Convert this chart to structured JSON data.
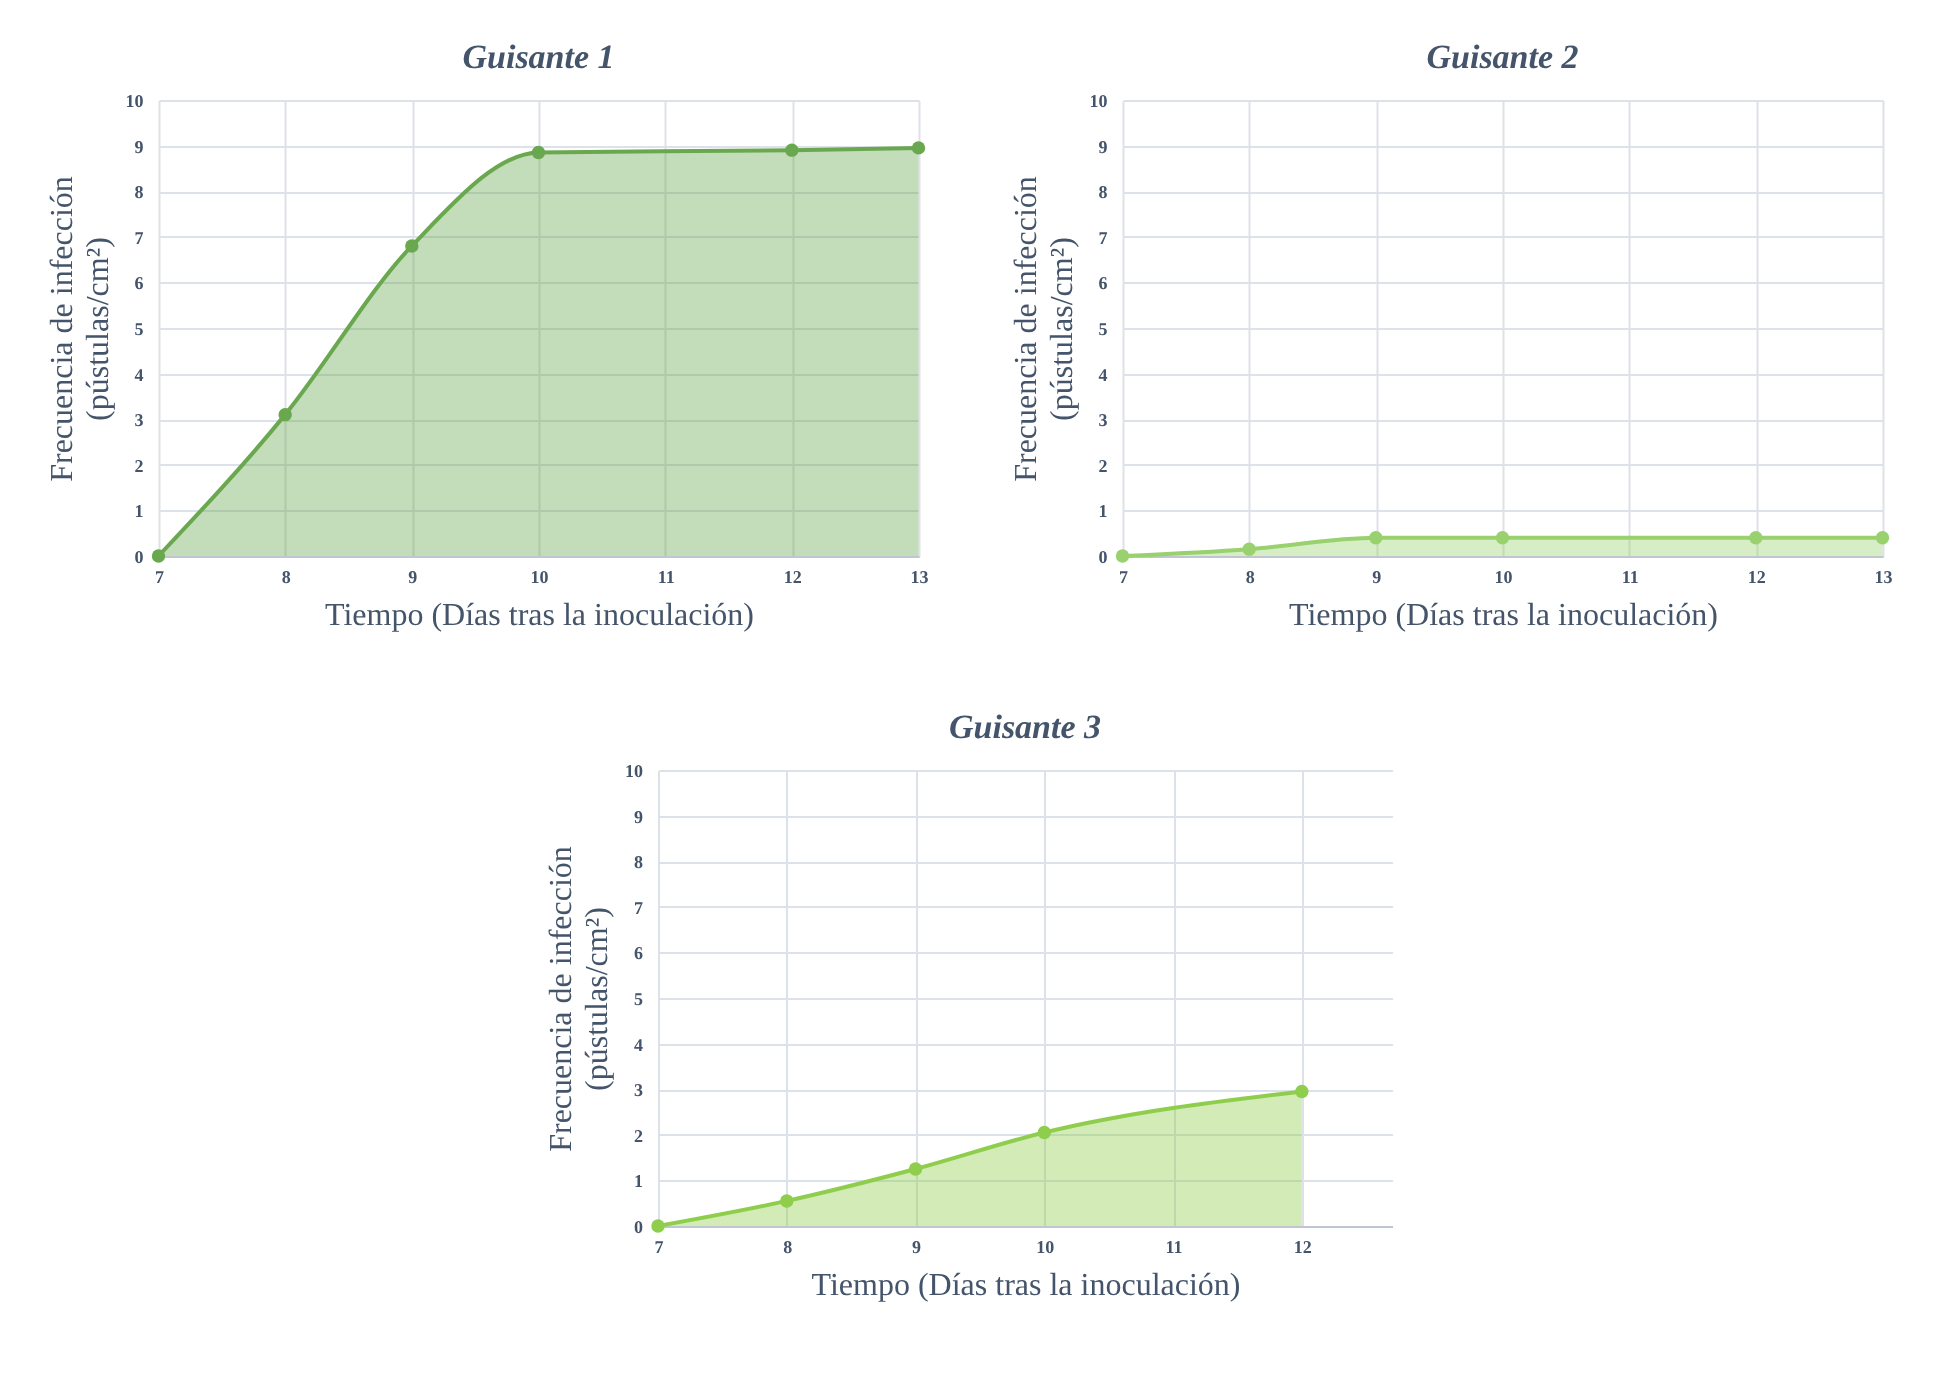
{
  "chart_data": [
    {
      "type": "area",
      "title": "Guisante 1",
      "xlabel": "Tiempo (Días tras la inoculación)",
      "ylabel": "Frecuencia  de infección\n(pústulas/cm²)",
      "x": [
        7,
        8,
        9,
        10,
        12,
        13
      ],
      "series": [
        {
          "color": "#6aa84f",
          "values": [
            0,
            3.1,
            6.8,
            8.85,
            8.9,
            8.95
          ]
        }
      ],
      "xlim": [
        7,
        13
      ],
      "xticks": [
        7,
        8,
        9,
        10,
        11,
        12,
        13
      ],
      "ylim": [
        0,
        10
      ],
      "yticks": [
        0,
        1,
        2,
        3,
        4,
        5,
        6,
        7,
        8,
        9,
        10
      ],
      "grid": true,
      "marker": "circle"
    },
    {
      "type": "area",
      "title": "Guisante 2",
      "xlabel": "Tiempo (Días tras la inoculación)",
      "ylabel": "Frecuencia  de infección\n(pústulas/cm²)",
      "x": [
        7,
        8,
        9,
        10,
        12,
        13
      ],
      "series": [
        {
          "color": "#98d16e",
          "values": [
            0,
            0.15,
            0.4,
            0.4,
            0.4,
            0.4
          ]
        }
      ],
      "xlim": [
        7,
        13
      ],
      "xticks": [
        7,
        8,
        9,
        10,
        11,
        12,
        13
      ],
      "ylim": [
        0,
        10
      ],
      "yticks": [
        0,
        1,
        2,
        3,
        4,
        5,
        6,
        7,
        8,
        9,
        10
      ],
      "grid": true,
      "marker": "circle"
    },
    {
      "type": "area",
      "title": "Guisante 3",
      "xlabel": "Tiempo (Días tras la inoculación)",
      "ylabel": "Frecuencia  de infección\n(pústulas/cm²)",
      "x": [
        7,
        8,
        9,
        10,
        12
      ],
      "series": [
        {
          "color": "#8fce4c",
          "values": [
            0,
            0.55,
            1.25,
            2.05,
            2.95
          ]
        }
      ],
      "xlim": [
        7,
        12.7
      ],
      "xticks": [
        7,
        8,
        9,
        10,
        11,
        12
      ],
      "ylim": [
        0,
        10
      ],
      "yticks": [
        0,
        1,
        2,
        3,
        4,
        5,
        6,
        7,
        8,
        9,
        10
      ],
      "grid": true,
      "marker": "circle"
    }
  ]
}
